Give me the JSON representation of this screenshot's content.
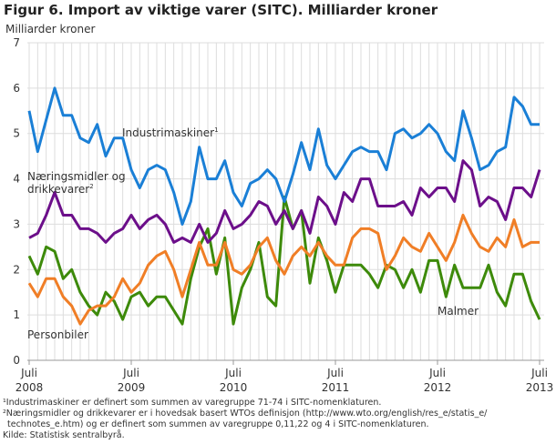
{
  "chart_data": {
    "type": "line",
    "title": "Figur 6. Import av viktige varer (SITC). Milliarder kroner",
    "ylabel": "Milliarder kroner",
    "ylim": [
      0,
      7
    ],
    "yticks": [
      "0",
      "1",
      "2",
      "3",
      "4",
      "5",
      "6",
      "7"
    ],
    "xticks": [
      {
        "top": "Juli",
        "bottom": "2008"
      },
      {
        "top": "Juli",
        "bottom": "2009"
      },
      {
        "top": "Juli",
        "bottom": "2010"
      },
      {
        "top": "Juli",
        "bottom": "2011"
      },
      {
        "top": "Juli",
        "bottom": "2012"
      },
      {
        "top": "Juli",
        "bottom": "2013"
      }
    ],
    "x_start": "2008-07",
    "x_end": "2013-07",
    "frequency": "monthly",
    "grid": true,
    "series": [
      {
        "name": "Industrimaskiner",
        "sup": "1",
        "color": "#1a7fd6",
        "values": [
          5.5,
          4.6,
          5.3,
          6.0,
          5.4,
          5.4,
          4.9,
          4.8,
          5.2,
          4.5,
          4.9,
          4.9,
          4.2,
          3.8,
          4.2,
          4.3,
          4.2,
          3.7,
          3.0,
          3.5,
          4.7,
          4.0,
          4.0,
          4.4,
          3.7,
          3.4,
          3.9,
          4.0,
          4.2,
          4.0,
          3.5,
          4.1,
          4.8,
          4.2,
          5.1,
          4.3,
          4.0,
          4.3,
          4.6,
          4.7,
          4.6,
          4.6,
          4.2,
          5.0,
          5.1,
          4.9,
          5.0,
          5.2,
          5.0,
          4.6,
          4.4,
          5.5,
          4.9,
          4.2,
          4.3,
          4.6,
          4.7,
          5.8,
          5.6,
          5.2,
          5.2
        ]
      },
      {
        "name": "Næringsmidler og drikkevarer",
        "sup": "2",
        "color": "#6c0f8a",
        "values": [
          2.7,
          2.8,
          3.2,
          3.7,
          3.2,
          3.2,
          2.9,
          2.9,
          2.8,
          2.6,
          2.8,
          2.9,
          3.2,
          2.9,
          3.1,
          3.2,
          3.0,
          2.6,
          2.7,
          2.6,
          3.0,
          2.6,
          2.8,
          3.3,
          2.9,
          3.0,
          3.2,
          3.5,
          3.4,
          3.0,
          3.3,
          2.9,
          3.3,
          2.8,
          3.6,
          3.4,
          3.0,
          3.7,
          3.5,
          4.0,
          4.0,
          3.4,
          3.4,
          3.4,
          3.5,
          3.2,
          3.8,
          3.6,
          3.8,
          3.8,
          3.5,
          4.4,
          4.2,
          3.4,
          3.6,
          3.5,
          3.1,
          3.8,
          3.8,
          3.6,
          4.2
        ]
      },
      {
        "name": "Personbiler",
        "color": "#f07e26",
        "values": [
          1.7,
          1.4,
          1.8,
          1.8,
          1.4,
          1.2,
          0.8,
          1.1,
          1.2,
          1.2,
          1.4,
          1.8,
          1.5,
          1.7,
          2.1,
          2.3,
          2.4,
          2.0,
          1.4,
          2.0,
          2.6,
          2.1,
          2.1,
          2.6,
          2.0,
          1.9,
          2.1,
          2.5,
          2.7,
          2.2,
          1.9,
          2.3,
          2.5,
          2.3,
          2.6,
          2.3,
          2.1,
          2.1,
          2.7,
          2.9,
          2.9,
          2.8,
          2.0,
          2.3,
          2.7,
          2.5,
          2.4,
          2.8,
          2.5,
          2.2,
          2.6,
          3.2,
          2.8,
          2.5,
          2.4,
          2.7,
          2.5,
          3.1,
          2.5,
          2.6,
          2.6
        ]
      },
      {
        "name": "Malmer",
        "color": "#3d8a0a",
        "values": [
          2.3,
          1.9,
          2.5,
          2.4,
          1.8,
          2.0,
          1.5,
          1.2,
          1.0,
          1.5,
          1.3,
          0.9,
          1.4,
          1.5,
          1.2,
          1.4,
          1.4,
          1.1,
          0.8,
          1.8,
          2.5,
          2.9,
          1.9,
          2.7,
          0.8,
          1.6,
          2.0,
          2.6,
          1.4,
          1.2,
          3.6,
          2.9,
          3.3,
          1.7,
          2.7,
          2.2,
          1.5,
          2.1,
          2.1,
          2.1,
          1.9,
          1.6,
          2.1,
          2.0,
          1.6,
          2.0,
          1.5,
          2.2,
          2.2,
          1.4,
          2.1,
          1.6,
          1.6,
          1.6,
          2.1,
          1.5,
          1.2,
          1.9,
          1.9,
          1.3,
          0.9
        ]
      }
    ]
  },
  "notes": [
    "¹Industrimaskiner er definert som summen av varegruppe 71-74 i SITC-nomenklaturen.",
    "²Næringsmidler og drikkevarer er i hovedsak basert WTOs definisjon (http://www.wto.org/english/res_e/statis_e/",
    "technotes_e.htm) og er definert som summen av varegruppe 0,11,22 og 4 i SITC-nomenklaturen.",
    "Kilde: Statistisk sentralbyrå."
  ]
}
